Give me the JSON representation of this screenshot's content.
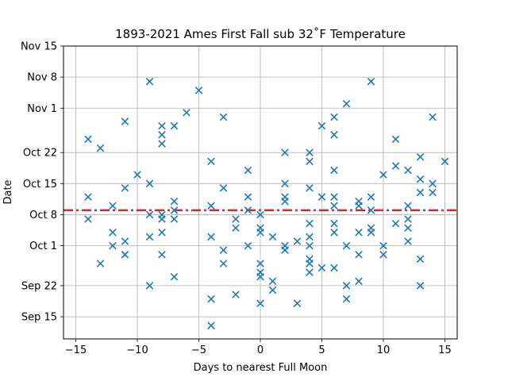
{
  "chart_data": {
    "type": "scatter",
    "title": "1893-2021 Ames First Fall sub 32˚F Temperature",
    "xlabel": "Days to nearest Full Moon",
    "ylabel": "Date",
    "xlim": [
      -16,
      16
    ],
    "ylim": [
      "2021-09-10",
      "2021-11-15"
    ],
    "x_ticks": [
      -15,
      -10,
      -5,
      0,
      5,
      10,
      15
    ],
    "x_tick_labels": [
      "−15",
      "−10",
      "−5",
      "0",
      "5",
      "10",
      "15"
    ],
    "y_ticks": [
      "2021-09-15",
      "2021-09-22",
      "2021-10-01",
      "2021-10-08",
      "2021-10-15",
      "2021-10-22",
      "2021-11-01",
      "2021-11-08",
      "2021-11-15"
    ],
    "y_tick_labels": [
      "Sep 15",
      "Sep 22",
      "Oct 1",
      "Oct 8",
      "Oct 15",
      "Oct 22",
      "Nov 1",
      "Nov 8",
      "Nov 15"
    ],
    "grid": true,
    "marker": "x",
    "series_color": "#1f77b4",
    "mean_line": {
      "y": "2021-10-09",
      "color": "#d62728",
      "style": "dashdot"
    },
    "points": [
      {
        "x": -14,
        "y": "2021-10-25"
      },
      {
        "x": -14,
        "y": "2021-10-12"
      },
      {
        "x": -14,
        "y": "2021-10-07"
      },
      {
        "x": -13,
        "y": "2021-10-23"
      },
      {
        "x": -13,
        "y": "2021-09-27"
      },
      {
        "x": -12,
        "y": "2021-10-10"
      },
      {
        "x": -12,
        "y": "2021-10-04"
      },
      {
        "x": -12,
        "y": "2021-10-01"
      },
      {
        "x": -11,
        "y": "2021-10-29"
      },
      {
        "x": -11,
        "y": "2021-10-14"
      },
      {
        "x": -11,
        "y": "2021-10-02"
      },
      {
        "x": -11,
        "y": "2021-09-29"
      },
      {
        "x": -11,
        "y": "2021-09-29"
      },
      {
        "x": -10,
        "y": "2021-10-17"
      },
      {
        "x": -9,
        "y": "2021-11-07"
      },
      {
        "x": -9,
        "y": "2021-10-15"
      },
      {
        "x": -9,
        "y": "2021-10-08"
      },
      {
        "x": -9,
        "y": "2021-10-03"
      },
      {
        "x": -9,
        "y": "2021-09-22"
      },
      {
        "x": -8,
        "y": "2021-10-28"
      },
      {
        "x": -8,
        "y": "2021-10-26"
      },
      {
        "x": -8,
        "y": "2021-10-24"
      },
      {
        "x": -8,
        "y": "2021-10-08"
      },
      {
        "x": -8,
        "y": "2021-10-07"
      },
      {
        "x": -8,
        "y": "2021-10-04"
      },
      {
        "x": -8,
        "y": "2021-09-29"
      },
      {
        "x": -7,
        "y": "2021-10-28"
      },
      {
        "x": -7,
        "y": "2021-10-11"
      },
      {
        "x": -7,
        "y": "2021-10-09"
      },
      {
        "x": -7,
        "y": "2021-10-07"
      },
      {
        "x": -7,
        "y": "2021-09-24"
      },
      {
        "x": -6,
        "y": "2021-10-31"
      },
      {
        "x": -5,
        "y": "2021-11-05"
      },
      {
        "x": -4,
        "y": "2021-10-20"
      },
      {
        "x": -4,
        "y": "2021-10-10"
      },
      {
        "x": -4,
        "y": "2021-10-03"
      },
      {
        "x": -4,
        "y": "2021-09-19"
      },
      {
        "x": -4,
        "y": "2021-09-13"
      },
      {
        "x": -3,
        "y": "2021-10-30"
      },
      {
        "x": -3,
        "y": "2021-10-14"
      },
      {
        "x": -3,
        "y": "2021-09-30"
      },
      {
        "x": -3,
        "y": "2021-09-27"
      },
      {
        "x": -2,
        "y": "2021-10-07"
      },
      {
        "x": -2,
        "y": "2021-10-05"
      },
      {
        "x": -2,
        "y": "2021-09-20"
      },
      {
        "x": -1,
        "y": "2021-10-18"
      },
      {
        "x": -1,
        "y": "2021-10-12"
      },
      {
        "x": -1,
        "y": "2021-10-09"
      },
      {
        "x": -1,
        "y": "2021-10-01"
      },
      {
        "x": 0,
        "y": "2021-10-08"
      },
      {
        "x": 0,
        "y": "2021-10-05"
      },
      {
        "x": 0,
        "y": "2021-10-04"
      },
      {
        "x": 0,
        "y": "2021-09-27"
      },
      {
        "x": 0,
        "y": "2021-09-25"
      },
      {
        "x": 0,
        "y": "2021-09-24"
      },
      {
        "x": 0,
        "y": "2021-09-18"
      },
      {
        "x": 1,
        "y": "2021-10-03"
      },
      {
        "x": 1,
        "y": "2021-09-23"
      },
      {
        "x": 1,
        "y": "2021-09-21"
      },
      {
        "x": 2,
        "y": "2021-10-22"
      },
      {
        "x": 2,
        "y": "2021-10-15"
      },
      {
        "x": 2,
        "y": "2021-10-12"
      },
      {
        "x": 2,
        "y": "2021-10-11"
      },
      {
        "x": 2,
        "y": "2021-10-01"
      },
      {
        "x": 2,
        "y": "2021-09-30"
      },
      {
        "x": 3,
        "y": "2021-10-02"
      },
      {
        "x": 3,
        "y": "2021-09-18"
      },
      {
        "x": 4,
        "y": "2021-10-22"
      },
      {
        "x": 4,
        "y": "2021-10-20"
      },
      {
        "x": 4,
        "y": "2021-10-14"
      },
      {
        "x": 4,
        "y": "2021-10-06"
      },
      {
        "x": 4,
        "y": "2021-10-03"
      },
      {
        "x": 4,
        "y": "2021-10-01"
      },
      {
        "x": 4,
        "y": "2021-09-28"
      },
      {
        "x": 4,
        "y": "2021-09-27"
      },
      {
        "x": 4,
        "y": "2021-09-25"
      },
      {
        "x": 5,
        "y": "2021-10-28"
      },
      {
        "x": 5,
        "y": "2021-10-12"
      },
      {
        "x": 5,
        "y": "2021-09-26"
      },
      {
        "x": 6,
        "y": "2021-10-30"
      },
      {
        "x": 6,
        "y": "2021-10-26"
      },
      {
        "x": 6,
        "y": "2021-10-18"
      },
      {
        "x": 6,
        "y": "2021-10-12"
      },
      {
        "x": 6,
        "y": "2021-10-10"
      },
      {
        "x": 6,
        "y": "2021-10-06"
      },
      {
        "x": 6,
        "y": "2021-10-04"
      },
      {
        "x": 6,
        "y": "2021-09-26"
      },
      {
        "x": 7,
        "y": "2021-11-02"
      },
      {
        "x": 7,
        "y": "2021-10-01"
      },
      {
        "x": 7,
        "y": "2021-09-22"
      },
      {
        "x": 7,
        "y": "2021-09-19"
      },
      {
        "x": 8,
        "y": "2021-10-11"
      },
      {
        "x": 8,
        "y": "2021-10-10"
      },
      {
        "x": 8,
        "y": "2021-10-04"
      },
      {
        "x": 8,
        "y": "2021-09-29"
      },
      {
        "x": 8,
        "y": "2021-09-23"
      },
      {
        "x": 9,
        "y": "2021-11-07"
      },
      {
        "x": 9,
        "y": "2021-10-12"
      },
      {
        "x": 9,
        "y": "2021-10-09"
      },
      {
        "x": 9,
        "y": "2021-10-05"
      },
      {
        "x": 9,
        "y": "2021-10-04"
      },
      {
        "x": 10,
        "y": "2021-10-17"
      },
      {
        "x": 10,
        "y": "2021-10-01"
      },
      {
        "x": 10,
        "y": "2021-09-29"
      },
      {
        "x": 11,
        "y": "2021-10-25"
      },
      {
        "x": 11,
        "y": "2021-10-19"
      },
      {
        "x": 11,
        "y": "2021-10-06"
      },
      {
        "x": 12,
        "y": "2021-10-18"
      },
      {
        "x": 12,
        "y": "2021-10-10"
      },
      {
        "x": 12,
        "y": "2021-10-07"
      },
      {
        "x": 12,
        "y": "2021-10-05"
      },
      {
        "x": 12,
        "y": "2021-10-02"
      },
      {
        "x": 13,
        "y": "2021-10-21"
      },
      {
        "x": 13,
        "y": "2021-10-16"
      },
      {
        "x": 13,
        "y": "2021-10-13"
      },
      {
        "x": 13,
        "y": "2021-09-28"
      },
      {
        "x": 13,
        "y": "2021-09-22"
      },
      {
        "x": 14,
        "y": "2021-10-30"
      },
      {
        "x": 14,
        "y": "2021-10-15"
      },
      {
        "x": 14,
        "y": "2021-10-13"
      },
      {
        "x": 15,
        "y": "2021-10-20"
      }
    ]
  }
}
